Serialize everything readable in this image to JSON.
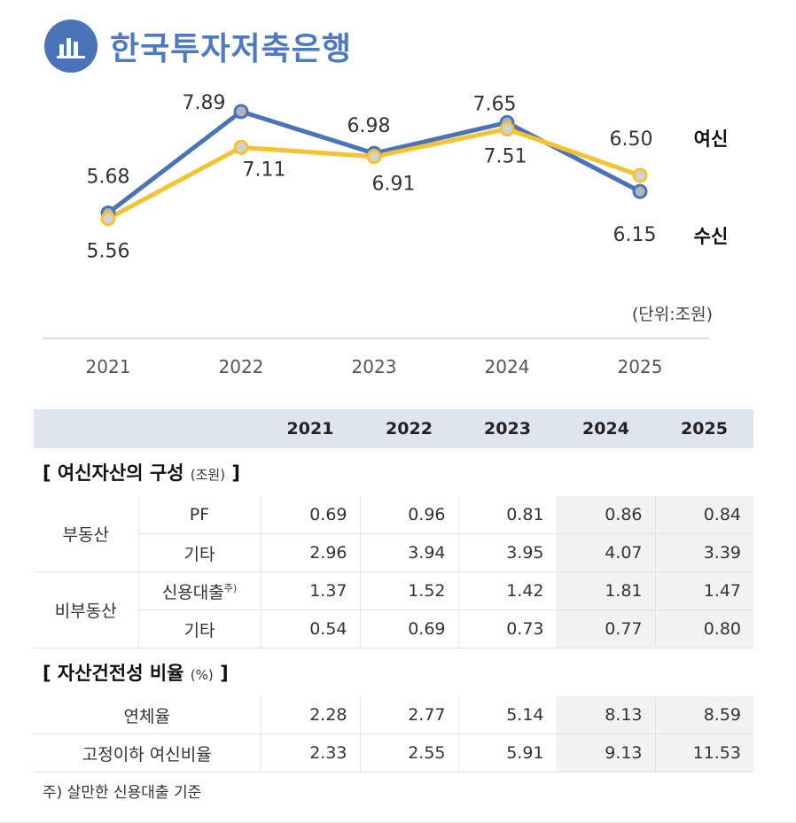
{
  "title": "한국투자저축은행",
  "unit_label": "(단위:조원)",
  "chart_data": {
    "type": "line",
    "x": [
      "2021",
      "2022",
      "2023",
      "2024",
      "2025"
    ],
    "series": [
      {
        "name": "수신",
        "values": [
          5.68,
          7.89,
          6.98,
          7.65,
          6.15
        ],
        "color": "#4a73b8",
        "marker": "#b0b4bc"
      },
      {
        "name": "여신",
        "values": [
          5.56,
          7.11,
          6.91,
          7.51,
          6.5
        ],
        "color": "#f5c230",
        "marker": "#cfd2d8"
      }
    ],
    "ylim": [
      5.4,
      8.1
    ]
  },
  "table": {
    "headers": [
      "",
      "2021",
      "2022",
      "2023",
      "2024",
      "2025"
    ],
    "section1": {
      "title": "[ 여신자산의 구성",
      "unit": "(조원)",
      "close": "]"
    },
    "group1": "부동산",
    "group2": "비부동산",
    "rows1": [
      {
        "label": "PF",
        "sup": "",
        "values": [
          "0.69",
          "0.96",
          "0.81",
          "0.86",
          "0.84"
        ]
      },
      {
        "label": "기타",
        "sup": "",
        "values": [
          "2.96",
          "3.94",
          "3.95",
          "4.07",
          "3.39"
        ]
      },
      {
        "label": "신용대출",
        "sup": "주)",
        "values": [
          "1.37",
          "1.52",
          "1.42",
          "1.81",
          "1.47"
        ]
      },
      {
        "label": "기타",
        "sup": "",
        "values": [
          "0.54",
          "0.69",
          "0.73",
          "0.77",
          "0.80"
        ]
      }
    ],
    "section2": {
      "title": "[ 자산건전성 비율",
      "unit": "(%)",
      "close": "]"
    },
    "rows2": [
      {
        "label": "연체율",
        "values": [
          "2.28",
          "2.77",
          "5.14",
          "8.13",
          "8.59"
        ]
      },
      {
        "label": "고정이하 여신비율",
        "values": [
          "2.33",
          "2.55",
          "5.91",
          "9.13",
          "11.53"
        ]
      }
    ]
  },
  "footnote": "주) 살만한 신용대출 기준"
}
